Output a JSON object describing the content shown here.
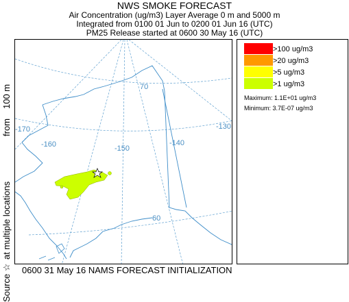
{
  "title": "NWS SMOKE FORECAST",
  "subtitle_lines": [
    "Air Concentration (ug/m3) Layer Average    0 m and  5000 m",
    "Integrated from 0100 01 Jun to 0200 01 Jun 16 (UTC)",
    "PM25 Release started at 0600 30 May 16 (UTC)"
  ],
  "y_axis_label": {
    "source": "Source ☆",
    "locations": "at multiple locations",
    "from": "from",
    "height": "100 m"
  },
  "map": {
    "longitude_labels": [
      "-170",
      "-160",
      "-150",
      "-140",
      "-130"
    ],
    "latitude_labels": [
      "70",
      "60"
    ],
    "grid_color": "#5fa0d0",
    "coast_color": "#3c8cc8"
  },
  "legend": {
    "items": [
      {
        "label": ">100 ug/m3",
        "color": "#ff0000"
      },
      {
        "label": ">20 ug/m3",
        "color": "#ff9900"
      },
      {
        "label": ">5 ug/m3",
        "color": "#ffff00"
      },
      {
        "label": ">1 ug/m3",
        "color": "#ccff00"
      }
    ],
    "maximum": "Maximum: 1.1E+01 ug/m3",
    "minimum": "Minimum: 3.7E-07 ug/m3"
  },
  "footer": "0600 31 May 16 NAMS FORECAST INITIALIZATION"
}
